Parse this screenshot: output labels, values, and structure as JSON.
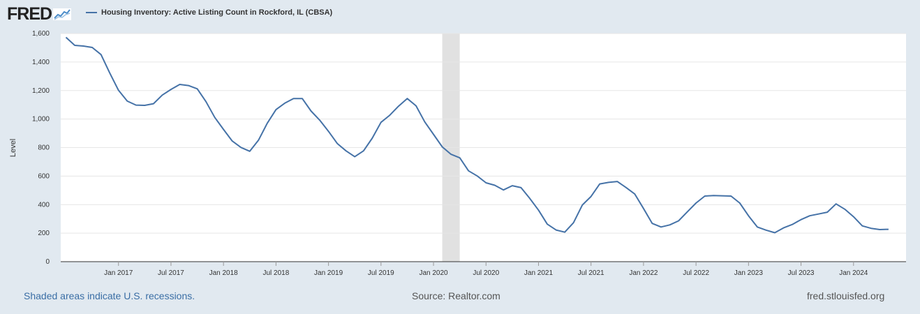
{
  "logo": {
    "text": "FRED",
    "icon": "trend-line-icon"
  },
  "legend": {
    "label": "Housing Inventory: Active Listing Count in Rockford, IL (CBSA)",
    "color": "#4572a7"
  },
  "footer": {
    "note": "Shaded areas indicate U.S. recessions.",
    "source": "Source: Realtor.com",
    "site": "fred.stlouisfed.org"
  },
  "chart_data": {
    "type": "line",
    "title": "",
    "xlabel": "",
    "ylabel": "Level",
    "ylim": [
      0,
      1600
    ],
    "yticks": [
      0,
      200,
      400,
      600,
      800,
      1000,
      1200,
      1400,
      1600
    ],
    "ytick_labels": [
      "0",
      "200",
      "400",
      "600",
      "800",
      "1,000",
      "1,200",
      "1,400",
      "1,600"
    ],
    "xlim": [
      "2016-07",
      "2024-07"
    ],
    "xticks": [
      "2017-01",
      "2017-07",
      "2018-01",
      "2018-07",
      "2019-01",
      "2019-07",
      "2020-01",
      "2020-07",
      "2021-01",
      "2021-07",
      "2022-01",
      "2022-07",
      "2023-01",
      "2023-07",
      "2024-01"
    ],
    "xtick_labels": [
      "Jan 2017",
      "Jul 2017",
      "Jan 2018",
      "Jul 2018",
      "Jan 2019",
      "Jul 2019",
      "Jan 2020",
      "Jul 2020",
      "Jan 2021",
      "Jul 2021",
      "Jan 2022",
      "Jul 2022",
      "Jan 2023",
      "Jul 2023",
      "Jan 2024"
    ],
    "grid": true,
    "recessions": [
      {
        "start": "2020-02",
        "end": "2020-04",
        "color": "#e1e1e1"
      }
    ],
    "series": [
      {
        "name": "Housing Inventory: Active Listing Count in Rockford, IL (CBSA)",
        "color": "#4572a7",
        "start": "2016-07",
        "values": [
          1573,
          1517,
          1512,
          1502,
          1452,
          1323,
          1202,
          1126,
          1098,
          1096,
          1108,
          1168,
          1208,
          1243,
          1235,
          1212,
          1122,
          1012,
          927,
          846,
          801,
          774,
          852,
          971,
          1066,
          1111,
          1144,
          1144,
          1057,
          992,
          914,
          829,
          777,
          736,
          777,
          866,
          977,
          1027,
          1090,
          1144,
          1093,
          980,
          893,
          805,
          753,
          728,
          637,
          601,
          553,
          536,
          503,
          533,
          519,
          444,
          361,
          263,
          222,
          207,
          273,
          397,
          457,
          545,
          556,
          562,
          520,
          474,
          373,
          268,
          243,
          258,
          286,
          349,
          411,
          460,
          464,
          462,
          460,
          411,
          322,
          243,
          221,
          203,
          237,
          261,
          295,
          322,
          334,
          347,
          405,
          368,
          315,
          251,
          234,
          225,
          227
        ]
      }
    ]
  }
}
